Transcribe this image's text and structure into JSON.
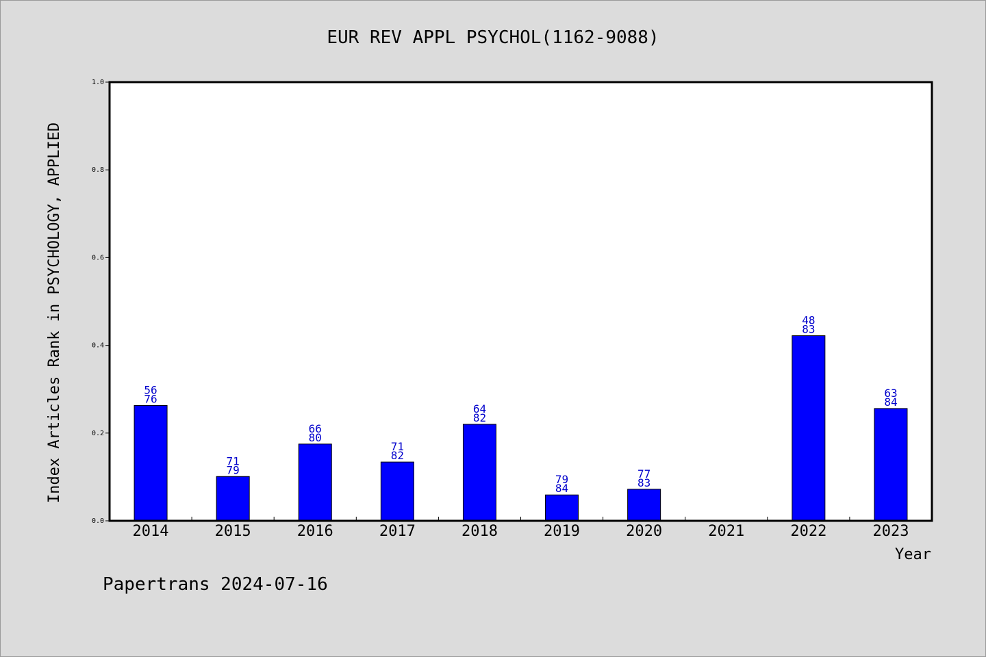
{
  "chart_data": {
    "type": "bar",
    "title": "EUR REV APPL PSYCHOL(1162-9088)",
    "xlabel": "Year",
    "ylabel": "Index Articles Rank in PSYCHOLOGY, APPLIED",
    "ylim": [
      0,
      1.0
    ],
    "yticks": [
      "0.0",
      "0.2",
      "0.4",
      "0.6",
      "0.8",
      "1.0"
    ],
    "grid": false,
    "bar_color": "#0000ff",
    "label_color": "#0000cc",
    "categories": [
      "2014",
      "2015",
      "2016",
      "2017",
      "2018",
      "2019",
      "2020",
      "2021",
      "2022",
      "2023"
    ],
    "values": [
      0.263,
      0.101,
      0.175,
      0.134,
      0.22,
      0.059,
      0.072,
      null,
      0.422,
      0.256
    ],
    "labels_top": [
      "56",
      "71",
      "66",
      "71",
      "64",
      "79",
      "77",
      "",
      "48",
      "63"
    ],
    "labels_bottom": [
      "76",
      "79",
      "80",
      "82",
      "82",
      "84",
      "83",
      "",
      "83",
      "84"
    ]
  },
  "footer": "Papertrans 2024-07-16"
}
